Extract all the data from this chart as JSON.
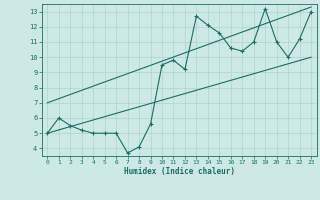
{
  "title": "",
  "xlabel": "Humidex (Indice chaleur)",
  "ylabel": "",
  "xlim": [
    -0.5,
    23.5
  ],
  "ylim": [
    3.5,
    13.5
  ],
  "xticks": [
    0,
    1,
    2,
    3,
    4,
    5,
    6,
    7,
    8,
    9,
    10,
    11,
    12,
    13,
    14,
    15,
    16,
    17,
    18,
    19,
    20,
    21,
    22,
    23
  ],
  "yticks": [
    4,
    5,
    6,
    7,
    8,
    9,
    10,
    11,
    12,
    13
  ],
  "bg_color": "#cce9e5",
  "grid_color": "#b0d4cf",
  "line_color": "#1a6e64",
  "data_x": [
    0,
    1,
    2,
    3,
    4,
    5,
    6,
    7,
    8,
    9,
    10,
    11,
    12,
    13,
    14,
    15,
    16,
    17,
    18,
    19,
    20,
    21,
    22,
    23
  ],
  "data_y": [
    5.0,
    6.0,
    5.5,
    5.2,
    5.0,
    5.0,
    5.0,
    3.7,
    4.1,
    5.6,
    9.5,
    9.8,
    9.2,
    12.7,
    12.1,
    11.6,
    10.6,
    10.4,
    11.0,
    13.2,
    11.0,
    10.0,
    11.2,
    13.0
  ],
  "upper_line_x": [
    0,
    23
  ],
  "upper_line_y": [
    7.0,
    13.3
  ],
  "lower_line_x": [
    0,
    23
  ],
  "lower_line_y": [
    5.0,
    10.0
  ],
  "figsize": [
    3.2,
    2.0
  ],
  "dpi": 100
}
